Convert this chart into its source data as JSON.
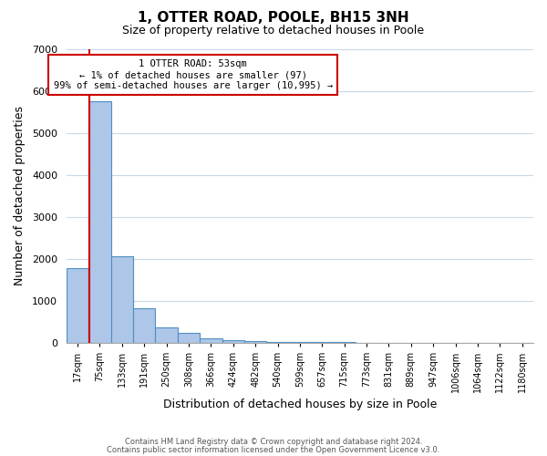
{
  "title": "1, OTTER ROAD, POOLE, BH15 3NH",
  "subtitle": "Size of property relative to detached houses in Poole",
  "xlabel": "Distribution of detached houses by size in Poole",
  "ylabel": "Number of detached properties",
  "bin_labels": [
    "17sqm",
    "75sqm",
    "133sqm",
    "191sqm",
    "250sqm",
    "308sqm",
    "366sqm",
    "424sqm",
    "482sqm",
    "540sqm",
    "599sqm",
    "657sqm",
    "715sqm",
    "773sqm",
    "831sqm",
    "889sqm",
    "947sqm",
    "1006sqm",
    "1064sqm",
    "1122sqm",
    "1180sqm"
  ],
  "bar_values": [
    1780,
    5750,
    2050,
    820,
    360,
    230,
    105,
    55,
    30,
    15,
    10,
    5,
    3,
    0,
    0,
    0,
    0,
    0,
    0,
    0,
    0
  ],
  "bar_color": "#aec6e8",
  "bar_edge_color": "#4f8fc0",
  "ylim": [
    0,
    7000
  ],
  "yticks": [
    0,
    1000,
    2000,
    3000,
    4000,
    5000,
    6000,
    7000
  ],
  "vline_x_idx": 0.55,
  "property_line_label": "1 OTTER ROAD: 53sqm",
  "annotation_line1": "← 1% of detached houses are smaller (97)",
  "annotation_line2": "99% of semi-detached houses are larger (10,995) →",
  "box_color": "#ffffff",
  "box_edge_color": "#cc0000",
  "vline_color": "#cc0000",
  "footer1": "Contains HM Land Registry data © Crown copyright and database right 2024.",
  "footer2": "Contains public sector information licensed under the Open Government Licence v3.0.",
  "grid_color": "#c8d8e8",
  "bg_color": "#ffffff"
}
